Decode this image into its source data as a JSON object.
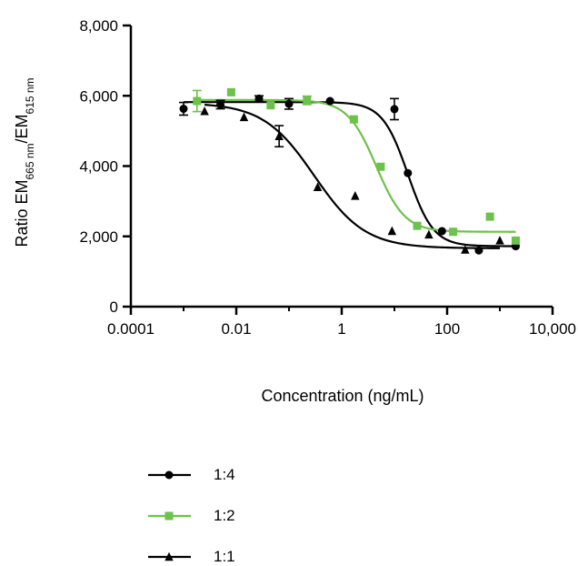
{
  "chart_data": {
    "type": "scatter",
    "title": "",
    "xlabel": "Concentration (ng/mL)",
    "ylabel": {
      "prefix": "Ratio EM",
      "sub1": "665 nm",
      "middle": "/EM",
      "sub2": "615 nm"
    },
    "x_scale": "log",
    "xlim": [
      0.0001,
      10000
    ],
    "ylim": [
      0,
      8000
    ],
    "x_tick_values": [
      0.0001,
      0.01,
      1,
      100,
      10000
    ],
    "x_tick_labels": [
      "0.0001",
      "0.01",
      "1",
      "100",
      "10,000"
    ],
    "y_tick_values": [
      0,
      2000,
      4000,
      6000,
      8000
    ],
    "y_tick_labels": [
      "0",
      "2,000",
      "4,000",
      "6,000",
      "8,000"
    ],
    "grid": false,
    "legend_position": "bottom",
    "series": [
      {
        "name": "1:4",
        "color": "#000000",
        "marker": "circle",
        "fit": {
          "top": 5820,
          "bottom": 1720,
          "ec50": 18,
          "hill": 1.8
        },
        "points": [
          {
            "x": 0.001,
            "y": 5630,
            "err": 180
          },
          {
            "x": 0.005,
            "y": 5750,
            "err": 120
          },
          {
            "x": 0.027,
            "y": 5920,
            "err": 80
          },
          {
            "x": 0.1,
            "y": 5770,
            "err": 150
          },
          {
            "x": 0.6,
            "y": 5850,
            "err": 0
          },
          {
            "x": 10,
            "y": 5620,
            "err": 300
          },
          {
            "x": 18,
            "y": 3800,
            "err": 0
          },
          {
            "x": 80,
            "y": 2150,
            "err": 0
          },
          {
            "x": 400,
            "y": 1600,
            "err": 0
          },
          {
            "x": 2000,
            "y": 1720,
            "err": 0
          }
        ]
      },
      {
        "name": "1:2",
        "color": "#6cc24a",
        "marker": "square",
        "fit": {
          "top": 5880,
          "bottom": 2130,
          "ec50": 4.5,
          "hill": 1.6
        },
        "points": [
          {
            "x": 0.0018,
            "y": 5850,
            "err": 300
          },
          {
            "x": 0.008,
            "y": 6100,
            "err": 0
          },
          {
            "x": 0.045,
            "y": 5730,
            "err": 0
          },
          {
            "x": 0.22,
            "y": 5870,
            "err": 120
          },
          {
            "x": 1.7,
            "y": 5330,
            "err": 0
          },
          {
            "x": 5.5,
            "y": 3980,
            "err": 0
          },
          {
            "x": 27,
            "y": 2300,
            "err": 0
          },
          {
            "x": 130,
            "y": 2130,
            "err": 0
          },
          {
            "x": 650,
            "y": 2560,
            "err": 0
          },
          {
            "x": 2000,
            "y": 1880,
            "err": 0
          }
        ]
      },
      {
        "name": "1:1",
        "color": "#000000",
        "marker": "triangle",
        "fit": {
          "top": 5800,
          "bottom": 1660,
          "ec50": 0.3,
          "hill": 0.9
        },
        "points": [
          {
            "x": 0.0025,
            "y": 5560,
            "err": 0
          },
          {
            "x": 0.014,
            "y": 5390,
            "err": 0
          },
          {
            "x": 0.065,
            "y": 4850,
            "err": 300
          },
          {
            "x": 0.35,
            "y": 3400,
            "err": 0
          },
          {
            "x": 1.8,
            "y": 3150,
            "err": 0
          },
          {
            "x": 9,
            "y": 2150,
            "err": 0
          },
          {
            "x": 45,
            "y": 2050,
            "err": 0
          },
          {
            "x": 220,
            "y": 1620,
            "err": 0
          },
          {
            "x": 1000,
            "y": 1880,
            "err": 0
          }
        ]
      }
    ]
  }
}
